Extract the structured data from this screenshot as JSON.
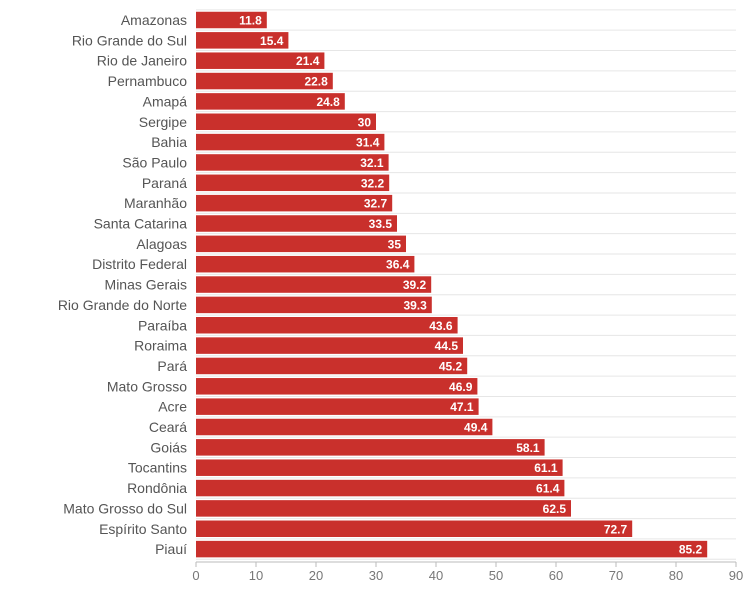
{
  "chart_data": {
    "type": "bar",
    "orientation": "horizontal",
    "categories": [
      "Amazonas",
      "Rio Grande do Sul",
      "Rio de Janeiro",
      "Pernambuco",
      "Amapá",
      "Sergipe",
      "Bahia",
      "São Paulo",
      "Paraná",
      "Maranhão",
      "Santa Catarina",
      "Alagoas",
      "Distrito Federal",
      "Minas Gerais",
      "Rio Grande do Norte",
      "Paraíba",
      "Roraima",
      "Pará",
      "Mato Grosso",
      "Acre",
      "Ceará",
      "Goiás",
      "Tocantins",
      "Rondônia",
      "Mato Grosso do Sul",
      "Espírito Santo",
      "Piauí"
    ],
    "values": [
      11.8,
      15.4,
      21.4,
      22.8,
      24.8,
      30,
      31.4,
      32.1,
      32.2,
      32.7,
      33.5,
      35,
      36.4,
      39.2,
      39.3,
      43.6,
      44.5,
      45.2,
      46.9,
      47.1,
      49.4,
      58.1,
      61.1,
      61.4,
      62.5,
      72.7,
      85.2
    ],
    "data_labels": [
      "11.8",
      "15.4",
      "21.4",
      "22.8",
      "24.8",
      "30",
      "31.4",
      "32.1",
      "32.2",
      "32.7",
      "33.5",
      "35",
      "36.4",
      "39.2",
      "39.3",
      "43.6",
      "44.5",
      "45.2",
      "46.9",
      "47.1",
      "49.4",
      "58.1",
      "61.1",
      "61.4",
      "62.5",
      "72.7",
      "85.2"
    ],
    "x_ticks": [
      "0",
      "10",
      "20",
      "30",
      "40",
      "50",
      "60",
      "70",
      "80",
      "90"
    ],
    "xlim": [
      0,
      90
    ],
    "title": "",
    "xlabel": "",
    "ylabel": "",
    "grid": true,
    "legend": "none",
    "bar_color": "#c9302c",
    "label_color": "#ffffff"
  }
}
